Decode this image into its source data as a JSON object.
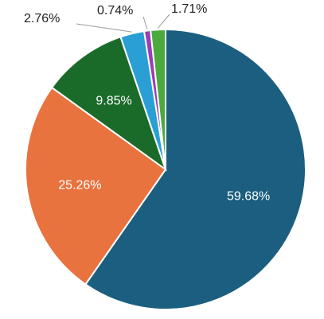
{
  "chart_data": {
    "type": "pie",
    "slices": [
      {
        "label": "59.68%",
        "value": 59.68,
        "color": "#1b5e7f"
      },
      {
        "label": "25.26%",
        "value": 25.26,
        "color": "#e8733f"
      },
      {
        "label": "9.85%",
        "value": 9.85,
        "color": "#1a6b2a"
      },
      {
        "label": "2.76%",
        "value": 2.76,
        "color": "#2a9fd6"
      },
      {
        "label": "0.74%",
        "value": 0.74,
        "color": "#9a3db8"
      },
      {
        "label": "1.71%",
        "value": 1.71,
        "color": "#4aaa3e"
      }
    ]
  }
}
